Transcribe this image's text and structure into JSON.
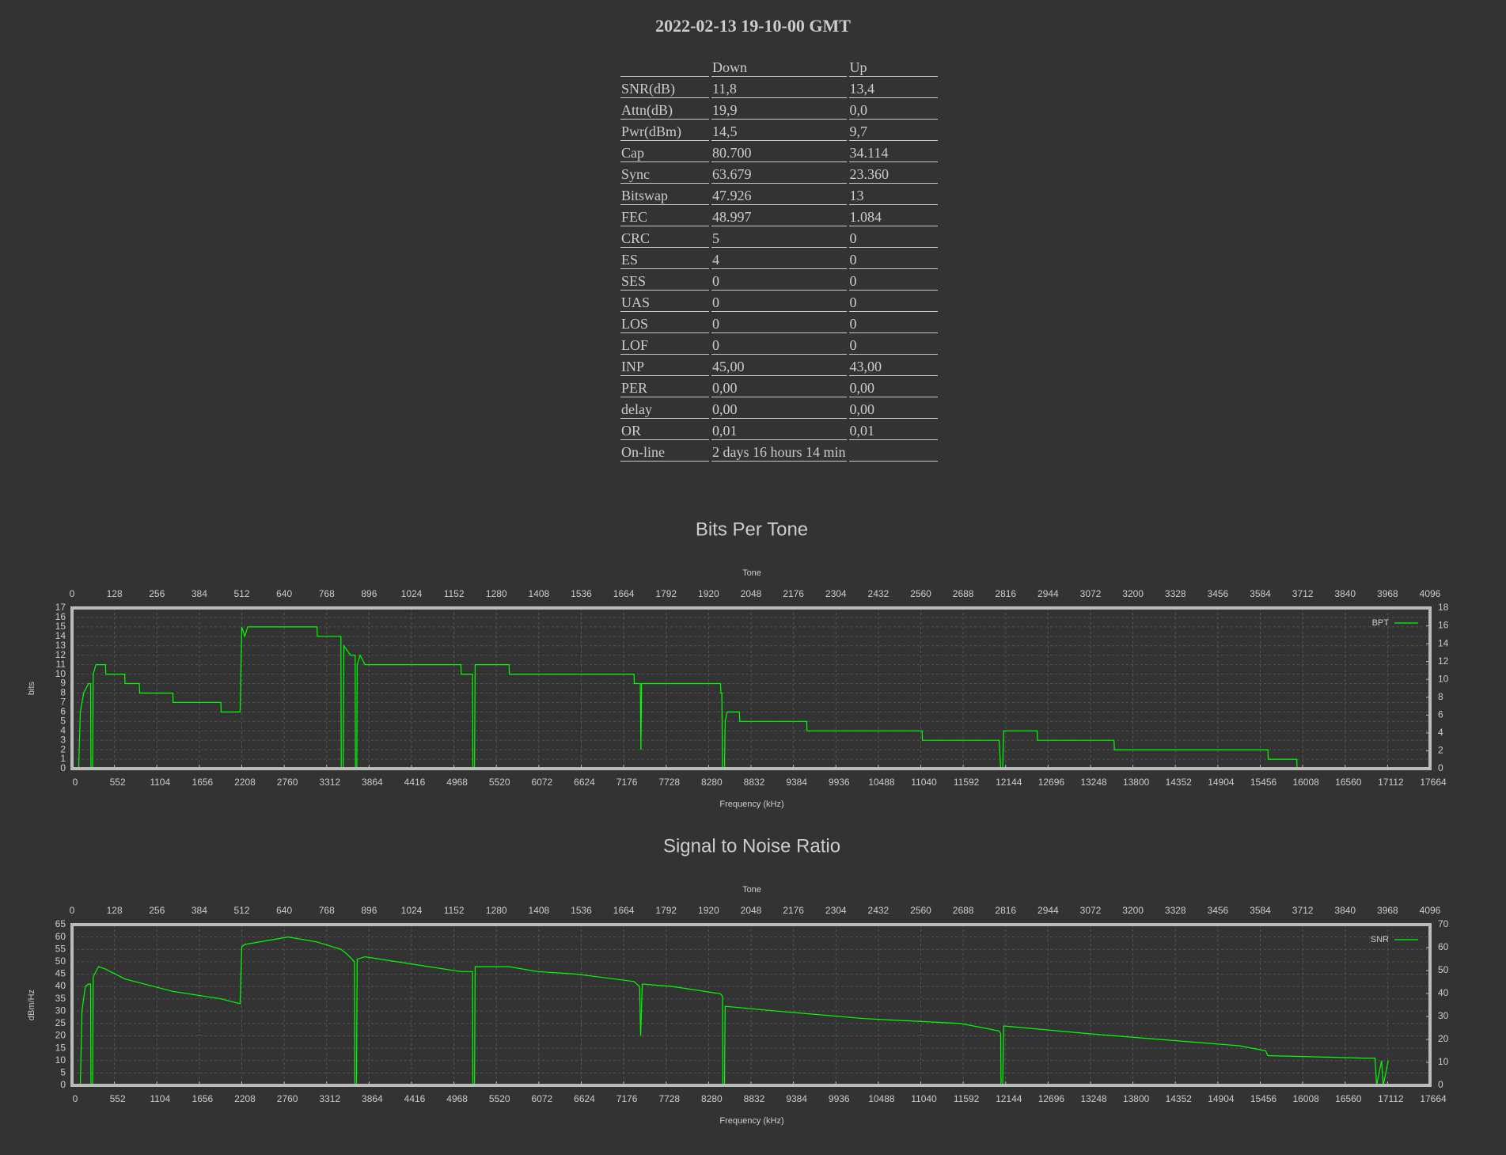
{
  "header": {
    "title": "2022-02-13 19-10-00 GMT"
  },
  "table": {
    "columns": [
      "Down",
      "Up"
    ],
    "rows": [
      [
        "SNR(dB)",
        "11,8",
        "13,4"
      ],
      [
        "Attn(dB)",
        "19,9",
        "0,0"
      ],
      [
        "Pwr(dBm)",
        "14,5",
        "9,7"
      ],
      [
        "Cap",
        "80.700",
        "34.114"
      ],
      [
        "Sync",
        "63.679",
        "23.360"
      ],
      [
        "Bitswap",
        "47.926",
        "13"
      ],
      [
        "FEC",
        "48.997",
        "1.084"
      ],
      [
        "CRC",
        "5",
        "0"
      ],
      [
        "ES",
        "4",
        "0"
      ],
      [
        "SES",
        "0",
        "0"
      ],
      [
        "UAS",
        "0",
        "0"
      ],
      [
        "LOS",
        "0",
        "0"
      ],
      [
        "LOF",
        "0",
        "0"
      ],
      [
        "INP",
        "45,00",
        "43,00"
      ],
      [
        "PER",
        "0,00",
        "0,00"
      ],
      [
        "delay",
        "0,00",
        "0,00"
      ],
      [
        "OR",
        "0,01",
        "0,01"
      ],
      [
        "On-line",
        "2 days 16 hours 14 min"
      ]
    ]
  },
  "chart_data": [
    {
      "type": "line",
      "title": "Bits Per Tone",
      "x_top_label": "Tone",
      "x_label": "Frequency (kHz)",
      "y_label": "bits",
      "grid": true,
      "legend": "upper right",
      "x": [
        0,
        20,
        25,
        35,
        50,
        56,
        57,
        62,
        64,
        72,
        101,
        102,
        159,
        160,
        203,
        204,
        304,
        305,
        449,
        450,
        507,
        512,
        521,
        530,
        739,
        740,
        811,
        812,
        818,
        820,
        840,
        854,
        855,
        859,
        860,
        869,
        884,
        1173,
        1174,
        1208,
        1209,
        1214,
        1216,
        1318,
        1319,
        1695,
        1696,
        1714,
        1716,
        1718,
        1956,
        1957,
        1960,
        1962,
        1968,
        1970,
        1976,
        2013,
        2014,
        2216,
        2217,
        2564,
        2565,
        2796,
        2798,
        2801,
        2807,
        2810,
        2911,
        2912,
        3143,
        3144,
        3607,
        3608,
        3694,
        3695
      ],
      "series": [
        {
          "name": "BPT",
          "color": "#00ff00",
          "values": [
            0,
            0,
            6,
            8,
            9,
            9,
            0,
            0,
            10,
            11,
            11,
            10,
            10,
            9,
            9,
            8,
            8,
            7,
            7,
            6,
            6,
            15,
            14,
            15,
            15,
            14,
            14,
            0,
            0,
            13,
            12,
            12,
            0,
            0,
            11,
            12,
            11,
            11,
            10,
            10,
            0,
            0,
            11,
            11,
            10,
            10,
            9,
            9,
            2,
            9,
            9,
            8,
            8,
            0,
            0,
            5,
            6,
            6,
            5,
            5,
            4,
            4,
            3,
            3,
            2,
            0,
            0,
            4,
            4,
            3,
            3,
            2,
            2,
            1,
            1,
            0
          ]
        }
      ],
      "xlim": [
        0,
        4096
      ],
      "xticks": [
        0,
        128,
        256,
        384,
        512,
        640,
        768,
        896,
        1024,
        1152,
        1280,
        1408,
        1536,
        1664,
        1792,
        1920,
        2048,
        2176,
        2304,
        2432,
        2560,
        2688,
        2816,
        2944,
        3072,
        3200,
        3328,
        3456,
        3584,
        3712,
        3840,
        3968,
        4096
      ],
      "x2lim": [
        0,
        17664
      ],
      "x2ticks": [
        0,
        552,
        1104,
        1656,
        2208,
        2760,
        3312,
        3864,
        4416,
        4968,
        5520,
        6072,
        6624,
        7176,
        7728,
        8280,
        8832,
        9384,
        9936,
        10488,
        11040,
        11592,
        12144,
        12696,
        13248,
        13800,
        14352,
        14904,
        15456,
        16008,
        16560,
        17112,
        17664
      ],
      "ylim": [
        0,
        17
      ],
      "yticks": [
        0,
        1,
        2,
        3,
        4,
        5,
        6,
        7,
        8,
        9,
        10,
        11,
        12,
        13,
        14,
        15,
        16,
        17
      ],
      "y2lim": [
        0,
        18
      ],
      "y2ticks": [
        0,
        2,
        4,
        6,
        8,
        10,
        12,
        14,
        16,
        18
      ]
    },
    {
      "type": "line",
      "title": "Signal to Noise Ratio",
      "x_top_label": "Tone",
      "x_label": "Frequency (kHz)",
      "y_label": "dBm/Hz",
      "grid": true,
      "legend": "upper right",
      "x": [
        0,
        25,
        30,
        40,
        50,
        56,
        57,
        62,
        64,
        80,
        101,
        160,
        304,
        449,
        507,
        512,
        521,
        565,
        652,
        739,
        811,
        830,
        852,
        853,
        858,
        860,
        884,
        1028,
        1173,
        1208,
        1209,
        1214,
        1216,
        1318,
        1405,
        1521,
        1637,
        1695,
        1712,
        1715,
        1720,
        1811,
        1956,
        1962,
        1963,
        1968,
        1970,
        2129,
        2390,
        2680,
        2796,
        2801,
        2802,
        2807,
        2810,
        3056,
        3520,
        3600,
        3607,
        3900,
        3930,
        3935,
        3950,
        3955,
        3970
      ],
      "series": [
        {
          "name": "SNR",
          "color": "#00ff00",
          "values": [
            0,
            0,
            30,
            40,
            41,
            41,
            0,
            0,
            44,
            48,
            47,
            43,
            38,
            35,
            33,
            56,
            57,
            58,
            60,
            58,
            55,
            53,
            50,
            0,
            0,
            51,
            52,
            49,
            46,
            46,
            0,
            0,
            48,
            48,
            46,
            45,
            43,
            42,
            40,
            20,
            41,
            40,
            37,
            36,
            0,
            0,
            32,
            30,
            27,
            25,
            22,
            21,
            0,
            0,
            24,
            21,
            16,
            14,
            12,
            11,
            11,
            0,
            10,
            0,
            10
          ]
        }
      ],
      "xlim": [
        0,
        4096
      ],
      "xticks": [
        0,
        128,
        256,
        384,
        512,
        640,
        768,
        896,
        1024,
        1152,
        1280,
        1408,
        1536,
        1664,
        1792,
        1920,
        2048,
        2176,
        2304,
        2432,
        2560,
        2688,
        2816,
        2944,
        3072,
        3200,
        3328,
        3456,
        3584,
        3712,
        3840,
        3968,
        4096
      ],
      "x2lim": [
        0,
        17664
      ],
      "x2ticks": [
        0,
        552,
        1104,
        1656,
        2208,
        2760,
        3312,
        3864,
        4416,
        4968,
        5520,
        6072,
        6624,
        7176,
        7728,
        8280,
        8832,
        9384,
        9936,
        10488,
        11040,
        11592,
        12144,
        12696,
        13248,
        13800,
        14352,
        14904,
        15456,
        16008,
        16560,
        17112,
        17664
      ],
      "ylim": [
        0,
        65
      ],
      "yticks": [
        0,
        5,
        10,
        15,
        20,
        25,
        30,
        35,
        40,
        45,
        50,
        55,
        60,
        65
      ],
      "y2lim": [
        0,
        70
      ],
      "y2ticks": [
        0,
        10,
        20,
        30,
        40,
        50,
        60,
        70
      ]
    }
  ]
}
